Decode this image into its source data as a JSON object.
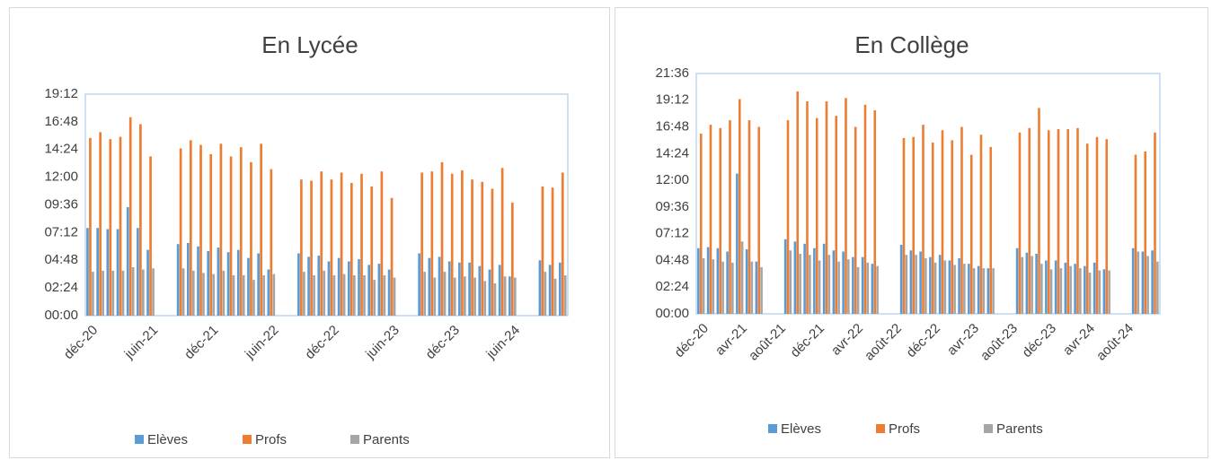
{
  "chart_data": [
    {
      "type": "bar",
      "title": "En Lycée",
      "categories": [
        "déc-20",
        null,
        null,
        null,
        null,
        null,
        "juin-21",
        null,
        null,
        null,
        null,
        null,
        "déc-21",
        null,
        null,
        null,
        null,
        null,
        "juin-22",
        null,
        null,
        null,
        null,
        null,
        "déc-22",
        null,
        null,
        null,
        null,
        null,
        "juin-23",
        null,
        null,
        null,
        null,
        null,
        "déc-23",
        null,
        null,
        null,
        null,
        null,
        "juin-24",
        null,
        null,
        null,
        null,
        null
      ],
      "series": [
        {
          "name": "Elèves",
          "color": "#5b9bd5",
          "values": [
            7.6,
            7.6,
            7.5,
            7.5,
            9.4,
            7.6,
            5.7,
            null,
            null,
            6.2,
            6.3,
            6.0,
            5.6,
            5.9,
            5.5,
            5.7,
            5.0,
            5.4,
            4.0,
            null,
            null,
            5.4,
            5.1,
            5.2,
            4.7,
            5.0,
            4.7,
            4.9,
            4.4,
            4.5,
            4.0,
            null,
            null,
            5.4,
            5.0,
            5.1,
            4.7,
            4.6,
            4.6,
            4.3,
            4.0,
            4.4,
            3.4,
            null,
            null,
            4.8,
            4.4,
            4.6
          ]
        },
        {
          "name": "Profs",
          "color": "#ed7d31",
          "values": [
            15.4,
            15.9,
            15.3,
            15.5,
            17.2,
            16.6,
            13.8,
            null,
            null,
            14.5,
            15.2,
            14.8,
            14.0,
            14.9,
            13.8,
            14.6,
            13.3,
            14.9,
            12.7,
            null,
            null,
            11.8,
            11.7,
            12.5,
            11.8,
            12.4,
            11.5,
            12.3,
            11.2,
            12.5,
            10.2,
            null,
            null,
            12.4,
            12.5,
            13.3,
            12.3,
            12.6,
            11.8,
            11.6,
            11.0,
            12.8,
            9.8,
            null,
            null,
            11.2,
            11.1,
            12.4
          ]
        },
        {
          "name": "Parents",
          "color": "#a5a5a5",
          "values": [
            3.8,
            3.9,
            3.9,
            3.9,
            4.2,
            4.0,
            4.1,
            null,
            null,
            4.1,
            3.9,
            3.7,
            3.6,
            3.9,
            3.5,
            3.5,
            3.1,
            3.5,
            3.6,
            null,
            null,
            3.8,
            3.5,
            3.9,
            3.5,
            3.6,
            3.5,
            3.5,
            3.1,
            3.5,
            3.3,
            null,
            null,
            3.8,
            3.3,
            3.8,
            3.3,
            3.4,
            3.3,
            3.0,
            2.8,
            3.4,
            3.3,
            null,
            null,
            3.8,
            3.2,
            3.5
          ]
        }
      ],
      "ylim": [
        0,
        19.2
      ],
      "yticks": [
        {
          "value": 0,
          "label": "00:00"
        },
        {
          "value": 2.4,
          "label": "02:24"
        },
        {
          "value": 4.8,
          "label": "04:48"
        },
        {
          "value": 7.2,
          "label": "07:12"
        },
        {
          "value": 9.6,
          "label": "09:36"
        },
        {
          "value": 12,
          "label": "12:00"
        },
        {
          "value": 14.4,
          "label": "14:24"
        },
        {
          "value": 16.8,
          "label": "16:48"
        },
        {
          "value": 19.2,
          "label": "19:12"
        }
      ],
      "grid": false,
      "legend": "bottom"
    },
    {
      "type": "bar",
      "title": "En Collège",
      "categories": [
        "déc-20",
        null,
        null,
        null,
        "avr-21",
        null,
        null,
        null,
        "août-21",
        null,
        null,
        null,
        "déc-21",
        null,
        null,
        null,
        "avr-22",
        null,
        null,
        null,
        "août-22",
        null,
        null,
        null,
        "déc-22",
        null,
        null,
        null,
        "avr-23",
        null,
        null,
        null,
        "août-23",
        null,
        null,
        null,
        "déc-23",
        null,
        null,
        null,
        "avr-24",
        null,
        null,
        null,
        "août-24",
        null,
        null,
        null
      ],
      "series": [
        {
          "name": "Elèves",
          "color": "#5b9bd5",
          "values": [
            5.9,
            6.0,
            5.9,
            5.6,
            12.6,
            5.8,
            4.7,
            null,
            null,
            6.7,
            6.5,
            6.3,
            5.9,
            6.3,
            5.7,
            5.6,
            5.1,
            5.1,
            4.5,
            null,
            null,
            6.2,
            5.7,
            5.6,
            5.1,
            5.3,
            4.8,
            5.0,
            4.5,
            4.3,
            4.1,
            null,
            null,
            5.9,
            5.5,
            5.4,
            4.8,
            4.8,
            4.6,
            4.5,
            4.3,
            4.6,
            4.0,
            null,
            null,
            5.9,
            5.6,
            5.7
          ]
        },
        {
          "name": "Profs",
          "color": "#ed7d31",
          "values": [
            16.2,
            17.0,
            16.7,
            17.4,
            19.3,
            17.4,
            16.8,
            null,
            null,
            17.4,
            20.0,
            19.1,
            17.6,
            19.1,
            17.8,
            19.4,
            16.8,
            18.8,
            18.3,
            null,
            null,
            15.8,
            15.9,
            17.0,
            15.4,
            16.5,
            15.6,
            16.8,
            14.3,
            16.1,
            15.0,
            null,
            null,
            16.3,
            16.7,
            18.5,
            16.5,
            16.6,
            16.6,
            16.7,
            15.3,
            15.9,
            15.7,
            null,
            null,
            14.3,
            14.6,
            16.3
          ]
        },
        {
          "name": "Parents",
          "color": "#a5a5a5",
          "values": [
            5.0,
            4.9,
            4.7,
            4.6,
            6.5,
            4.7,
            4.2,
            null,
            null,
            5.7,
            5.4,
            5.3,
            4.8,
            5.3,
            4.7,
            4.9,
            4.2,
            4.6,
            4.3,
            null,
            null,
            5.3,
            5.3,
            5.0,
            4.6,
            4.8,
            4.4,
            4.5,
            4.1,
            4.1,
            4.1,
            null,
            null,
            5.1,
            5.2,
            4.5,
            4.0,
            4.1,
            4.3,
            4.1,
            3.7,
            3.9,
            3.9,
            null,
            null,
            5.6,
            5.2,
            4.7
          ]
        }
      ],
      "ylim": [
        0,
        21.6
      ],
      "yticks": [
        {
          "value": 0,
          "label": "00:00"
        },
        {
          "value": 2.4,
          "label": "02:24"
        },
        {
          "value": 4.8,
          "label": "04:48"
        },
        {
          "value": 7.2,
          "label": "07:12"
        },
        {
          "value": 9.6,
          "label": "09:36"
        },
        {
          "value": 12,
          "label": "12:00"
        },
        {
          "value": 14.4,
          "label": "14:24"
        },
        {
          "value": 16.8,
          "label": "16:48"
        },
        {
          "value": 19.2,
          "label": "19:12"
        },
        {
          "value": 21.6,
          "label": "21:36"
        }
      ],
      "grid": false,
      "legend": "bottom"
    }
  ]
}
